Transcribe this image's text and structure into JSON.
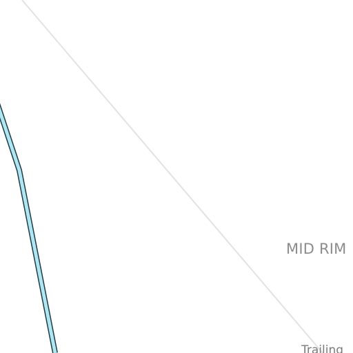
{
  "map": {
    "area_label": "MID RIM",
    "trail_label": "Trailing",
    "features": [
      {
        "name": "road",
        "color": "#aee6f2",
        "outline": "#1f3a44"
      },
      {
        "name": "boundary-line",
        "color": "#e2e2e2"
      }
    ]
  }
}
